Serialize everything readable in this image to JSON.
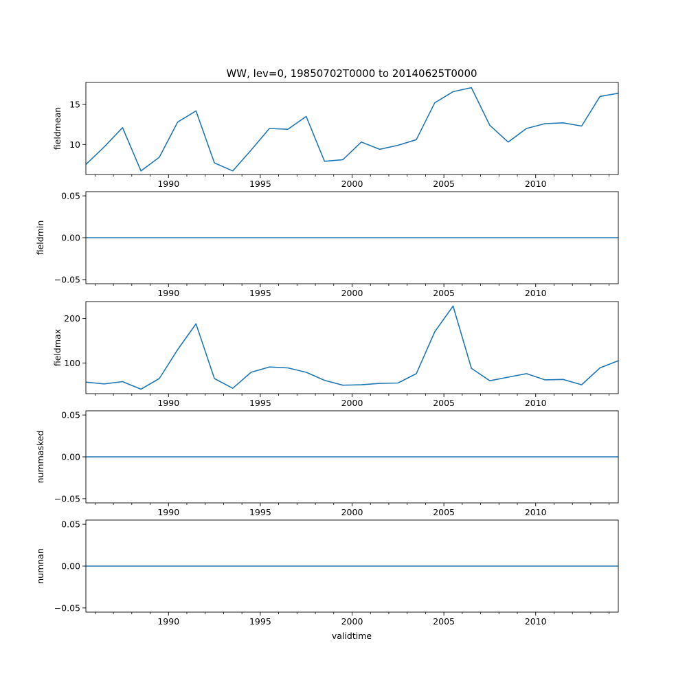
{
  "chart_data": {
    "type": "line",
    "title": "WW, lev=0, 19850702T0000 to 20140625T0000",
    "xlabel": "validtime",
    "xlim": [
      1985.5,
      2014.5
    ],
    "x_major_ticks": [
      1990,
      1995,
      2000,
      2005,
      2010
    ],
    "x_tick_labels": [
      "1990",
      "1995",
      "2000",
      "2005",
      "2010"
    ],
    "x_minor_ticks": [
      1986,
      1987,
      1988,
      1989,
      1991,
      1992,
      1993,
      1994,
      1996,
      1997,
      1998,
      1999,
      2001,
      2002,
      2003,
      2004,
      2006,
      2007,
      2008,
      2009,
      2011,
      2012,
      2013,
      2014
    ],
    "line_color": "#1f77b4",
    "x": [
      1985.5,
      1986.5,
      1987.5,
      1988.5,
      1989.5,
      1990.5,
      1991.5,
      1992.5,
      1993.5,
      1994.5,
      1995.5,
      1996.5,
      1997.5,
      1998.5,
      1999.5,
      2000.5,
      2001.5,
      2002.5,
      2003.5,
      2004.5,
      2005.5,
      2006.5,
      2007.5,
      2008.5,
      2009.5,
      2010.5,
      2011.5,
      2012.5,
      2013.5,
      2014.5
    ],
    "panels": [
      {
        "ylabel": "fieldmean",
        "ylim": [
          6.25,
          17.75
        ],
        "y_ticks": [
          10,
          15
        ],
        "y_tick_labels": [
          "10",
          "15"
        ],
        "values": [
          7.5,
          9.7,
          12.1,
          6.7,
          8.4,
          12.8,
          14.2,
          7.7,
          6.7,
          9.3,
          12.0,
          11.9,
          13.5,
          7.9,
          8.1,
          10.3,
          9.4,
          9.9,
          10.6,
          15.2,
          16.6,
          17.1,
          12.4,
          10.3,
          12.0,
          12.6,
          12.7,
          12.3,
          16.0,
          16.4
        ]
      },
      {
        "ylabel": "fieldmin",
        "ylim": [
          -0.055,
          0.055
        ],
        "y_ticks": [
          -0.05,
          0.0,
          0.05
        ],
        "y_tick_labels": [
          "−0.05",
          "0.00",
          "0.05"
        ],
        "values": [
          0,
          0,
          0,
          0,
          0,
          0,
          0,
          0,
          0,
          0,
          0,
          0,
          0,
          0,
          0,
          0,
          0,
          0,
          0,
          0,
          0,
          0,
          0,
          0,
          0,
          0,
          0,
          0,
          0,
          0
        ]
      },
      {
        "ylabel": "fieldmax",
        "ylim": [
          31,
          238
        ],
        "y_ticks": [
          100,
          200
        ],
        "y_tick_labels": [
          "100",
          "200"
        ],
        "values": [
          57,
          53,
          58,
          41,
          65,
          130,
          188,
          65,
          43,
          79,
          91,
          89,
          79,
          61,
          50,
          51,
          54,
          55,
          76,
          170,
          228,
          88,
          60,
          68,
          76,
          62,
          63,
          51,
          89,
          105
        ]
      },
      {
        "ylabel": "nummasked",
        "ylim": [
          -0.055,
          0.055
        ],
        "y_ticks": [
          -0.05,
          0.0,
          0.05
        ],
        "y_tick_labels": [
          "−0.05",
          "0.00",
          "0.05"
        ],
        "values": [
          0,
          0,
          0,
          0,
          0,
          0,
          0,
          0,
          0,
          0,
          0,
          0,
          0,
          0,
          0,
          0,
          0,
          0,
          0,
          0,
          0,
          0,
          0,
          0,
          0,
          0,
          0,
          0,
          0,
          0
        ]
      },
      {
        "ylabel": "numnan",
        "ylim": [
          -0.055,
          0.055
        ],
        "y_ticks": [
          -0.05,
          0.0,
          0.05
        ],
        "y_tick_labels": [
          "−0.05",
          "0.00",
          "0.05"
        ],
        "values": [
          0,
          0,
          0,
          0,
          0,
          0,
          0,
          0,
          0,
          0,
          0,
          0,
          0,
          0,
          0,
          0,
          0,
          0,
          0,
          0,
          0,
          0,
          0,
          0,
          0,
          0,
          0,
          0,
          0,
          0
        ]
      }
    ]
  }
}
